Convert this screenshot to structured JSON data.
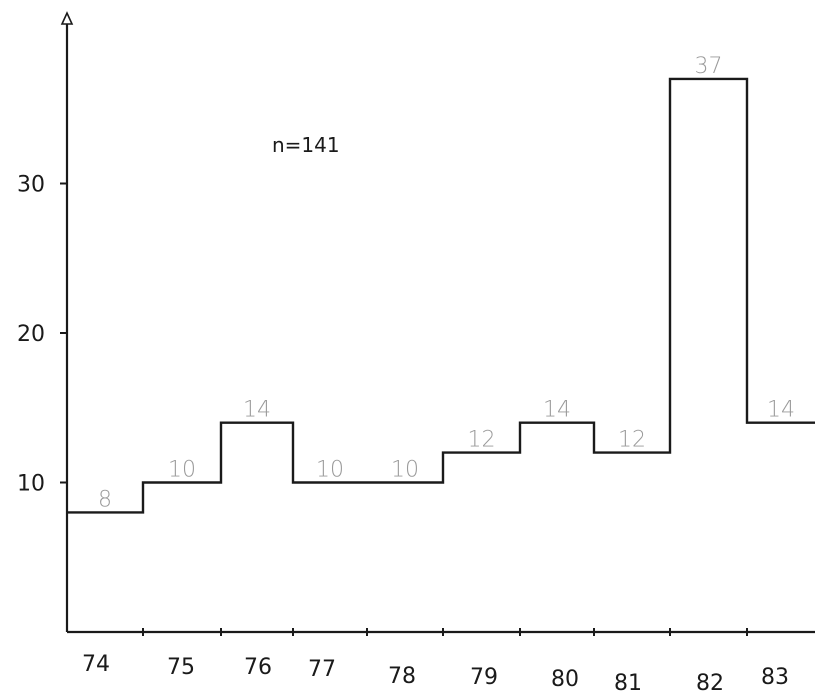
{
  "chart_data": {
    "type": "bar",
    "title": "",
    "xlabel": "",
    "ylabel": "",
    "annotation": "n=141",
    "categories": [
      "74",
      "75",
      "76",
      "77",
      "78",
      "79",
      "80",
      "81",
      "82",
      "83"
    ],
    "values": [
      8,
      10,
      14,
      10,
      10,
      12,
      14,
      12,
      37,
      14
    ],
    "data_labels": [
      "8",
      "10",
      "14",
      "10",
      "10",
      "12",
      "14",
      "12",
      "37",
      "14"
    ],
    "yticks": [
      "10",
      "20",
      "30"
    ],
    "ylim": [
      0,
      40
    ],
    "grid": false,
    "legend": "none"
  }
}
